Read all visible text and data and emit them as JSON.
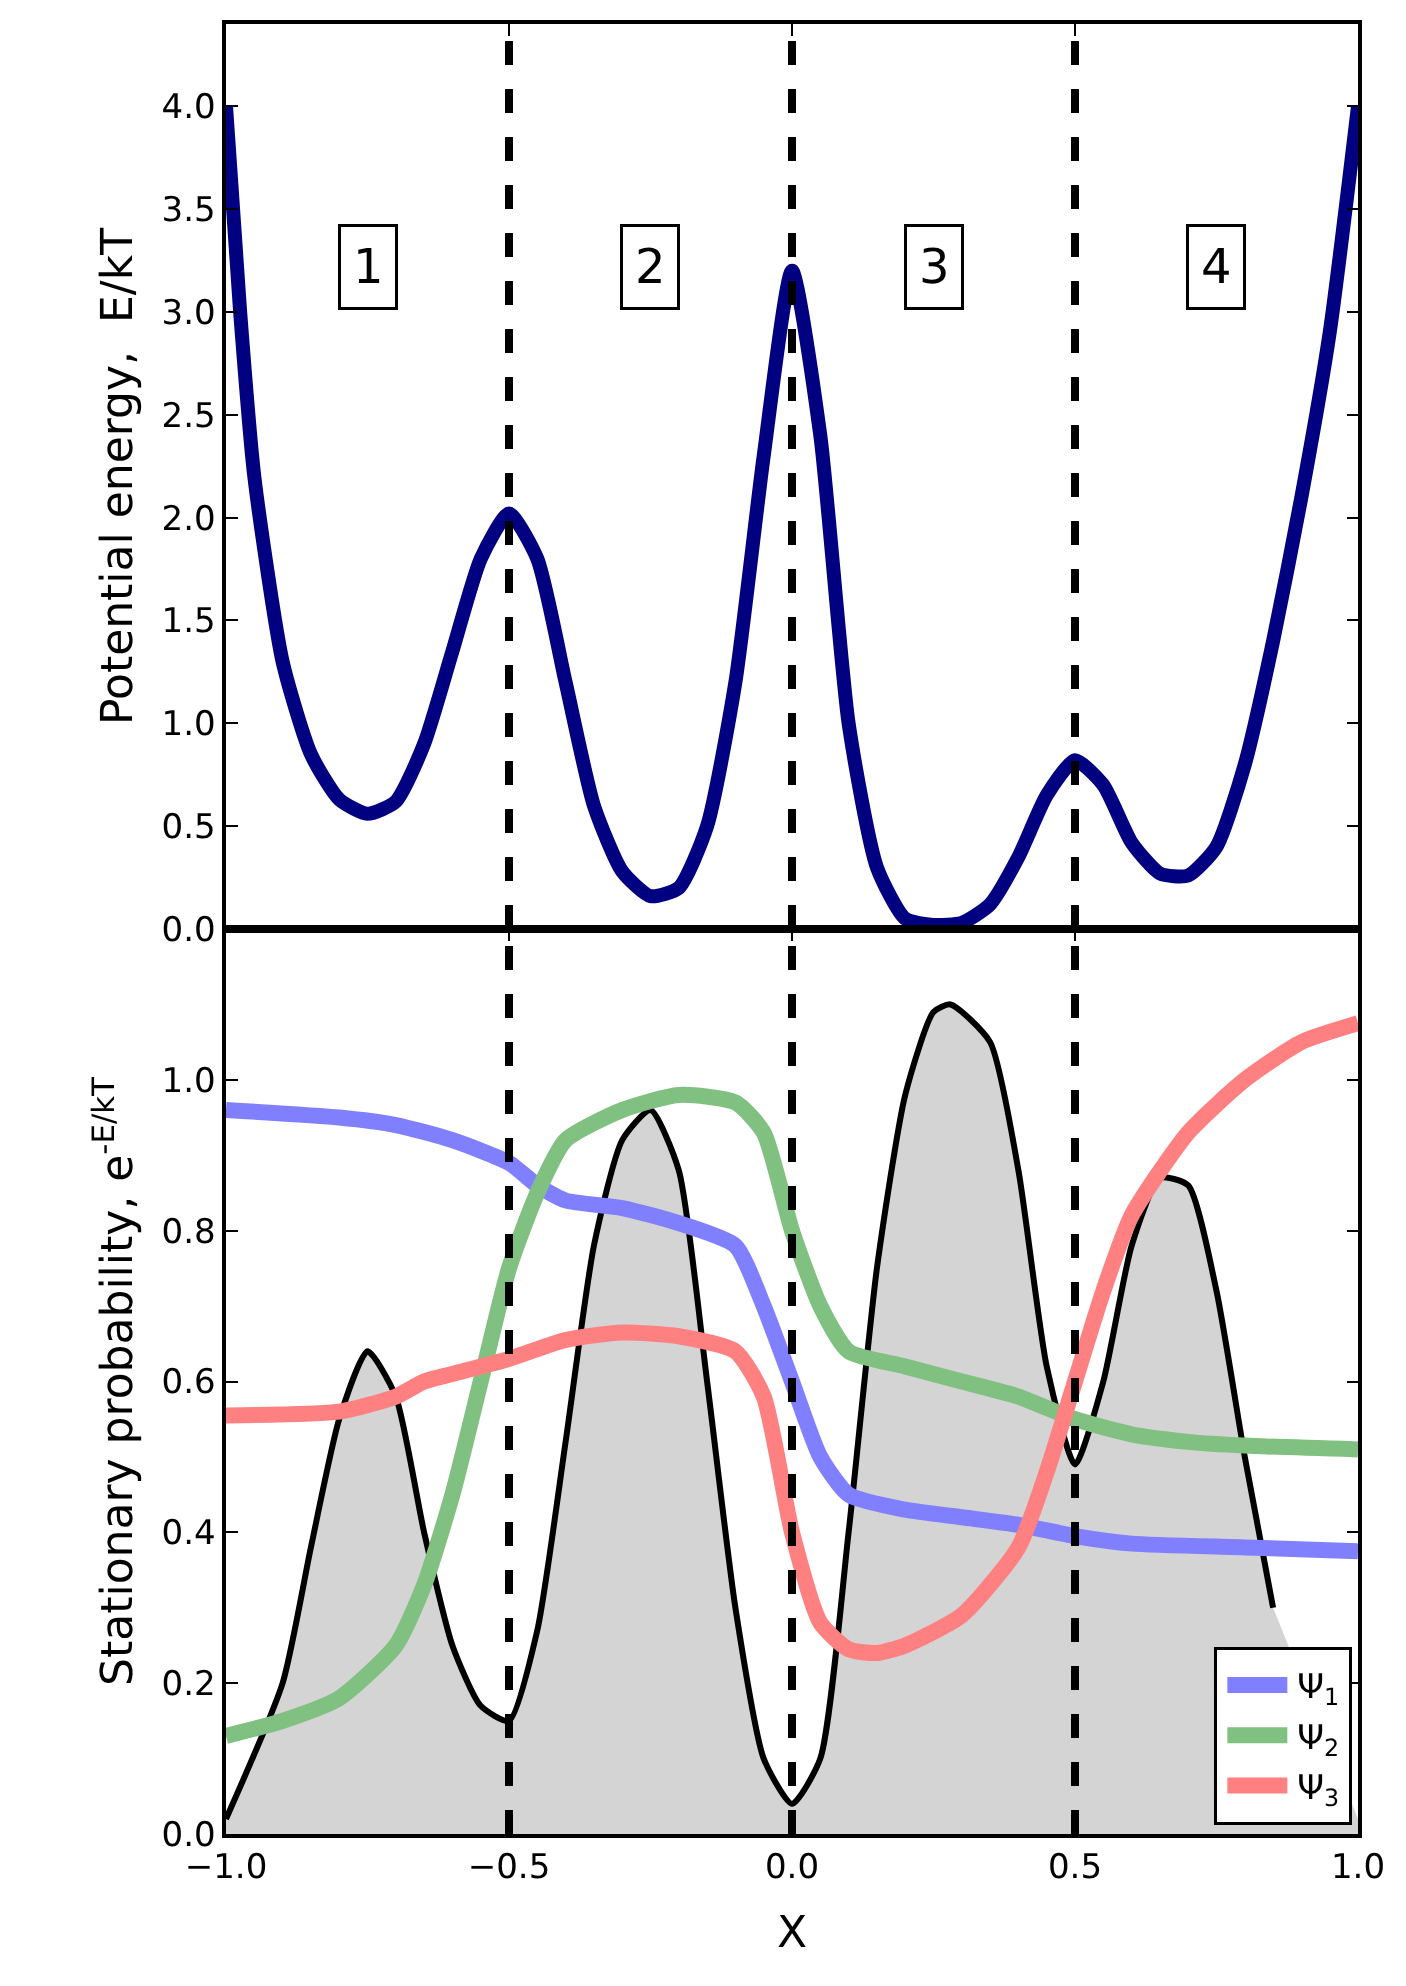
{
  "chart_data": [
    {
      "type": "line",
      "ylabel": "Potential energy,  E/kT",
      "tick_labels": "y",
      "x": [
        -1,
        -0.975,
        -0.95,
        -0.9,
        -0.85,
        -0.8,
        -0.75,
        -0.7,
        -0.65,
        -0.6,
        -0.55,
        -0.5,
        -0.45,
        -0.4,
        -0.35,
        -0.3,
        -0.25,
        -0.2,
        -0.15,
        -0.1,
        -0.05,
        0,
        0.05,
        0.1,
        0.15,
        0.2,
        0.25,
        0.3,
        0.35,
        0.4,
        0.45,
        0.5,
        0.55,
        0.6,
        0.65,
        0.7,
        0.75,
        0.8,
        0.85,
        0.9,
        0.95,
        1
      ],
      "series": [
        {
          "color": "#000080",
          "values": [
            4.0,
            3.0,
            2.2,
            1.3,
            0.85,
            0.63,
            0.56,
            0.62,
            0.9,
            1.35,
            1.8,
            2.02,
            1.8,
            1.2,
            0.6,
            0.28,
            0.16,
            0.2,
            0.5,
            1.2,
            2.3,
            3.2,
            2.4,
            1.0,
            0.3,
            0.05,
            0.02,
            0.03,
            0.12,
            0.35,
            0.65,
            0.82,
            0.7,
            0.42,
            0.27,
            0.26,
            0.4,
            0.8,
            1.4,
            2.1,
            2.9,
            4.0
          ]
        }
      ],
      "xlim": [
        -1,
        1
      ],
      "xticks": [
        -1.0,
        -0.5,
        0.0,
        0.5,
        1.0
      ],
      "ylim": [
        0,
        4.4
      ],
      "yticks": [
        {
          "value": 0,
          "label": "0.0"
        },
        {
          "value": 0.5,
          "label": "0.5"
        },
        {
          "value": 1,
          "label": "1.0"
        },
        {
          "value": 1.5,
          "label": "1.5"
        },
        {
          "value": 2,
          "label": "2.0"
        },
        {
          "value": 2.5,
          "label": "2.5"
        },
        {
          "value": 3,
          "label": "3.0"
        },
        {
          "value": 3.5,
          "label": "3.5"
        },
        {
          "value": 4,
          "label": "4.0"
        }
      ],
      "ref_lines": [
        {
          "axis": "x",
          "value": -0.5,
          "color": "#000000",
          "line_style": "dashed"
        },
        {
          "axis": "x",
          "value": 0,
          "color": "#000000",
          "line_style": "dashed"
        },
        {
          "axis": "x",
          "value": 0.5,
          "color": "#000000",
          "line_style": "dashed"
        }
      ],
      "annotations": [
        {
          "text": "1",
          "x": -0.75,
          "y": 3.22
        },
        {
          "text": "2",
          "x": -0.25,
          "y": 3.22
        },
        {
          "text": "3",
          "x": 0.25,
          "y": 3.22
        },
        {
          "text": "4",
          "x": 0.75,
          "y": 3.22
        }
      ]
    },
    {
      "type": "line",
      "ylabel": "Stationary probability, e$^{-E/kT}$",
      "xlabel": "X",
      "legend": "bottom right",
      "x": [
        -1,
        -0.9,
        -0.85,
        -0.8,
        -0.75,
        -0.7,
        -0.65,
        -0.6,
        -0.55,
        -0.5,
        -0.45,
        -0.4,
        -0.35,
        -0.3,
        -0.25,
        -0.2,
        -0.15,
        -0.1,
        -0.05,
        0,
        0.05,
        0.1,
        0.15,
        0.2,
        0.25,
        0.28,
        0.35,
        0.4,
        0.45,
        0.5,
        0.55,
        0.6,
        0.65,
        0.7,
        0.75,
        0.8,
        0.85,
        0.9,
        0.95,
        1
      ],
      "series": [
        {
          "type": "area",
          "color": "#000000",
          "values": [
            0.02,
            0.2,
            0.38,
            0.55,
            0.64,
            0.58,
            0.4,
            0.25,
            0.17,
            0.15,
            0.27,
            0.52,
            0.78,
            0.92,
            0.96,
            0.88,
            0.6,
            0.3,
            0.1,
            0.04,
            0.1,
            0.4,
            0.75,
            0.98,
            1.09,
            1.1,
            1.05,
            0.88,
            0.62,
            0.49,
            0.6,
            0.78,
            0.87,
            0.86,
            0.72,
            0.5,
            0.3,
            null,
            null,
            0.02
          ]
        },
        {
          "name": "Ψ$_{1}$",
          "color": "#8080ff",
          "x": [
            -1,
            -0.8,
            -0.7,
            -0.6,
            -0.5,
            -0.45,
            -0.4,
            -0.3,
            -0.2,
            -0.1,
            -0.05,
            0,
            0.05,
            0.1,
            0.2,
            0.3,
            0.4,
            0.5,
            0.6,
            0.8,
            1
          ],
          "values": [
            0.96,
            0.95,
            0.94,
            0.92,
            0.89,
            0.86,
            0.84,
            0.83,
            0.81,
            0.78,
            0.7,
            0.6,
            0.5,
            0.45,
            0.43,
            0.42,
            0.41,
            0.395,
            0.385,
            0.38,
            0.375
          ]
        },
        {
          "name": "Ψ$_{2}$",
          "color": "#80c080",
          "x": [
            -1,
            -0.9,
            -0.8,
            -0.7,
            -0.65,
            -0.6,
            -0.55,
            -0.5,
            -0.45,
            -0.4,
            -0.3,
            -0.2,
            -0.1,
            -0.05,
            0,
            0.05,
            0.1,
            0.2,
            0.3,
            0.4,
            0.5,
            0.6,
            0.7,
            0.8,
            1
          ],
          "values": [
            0.13,
            0.15,
            0.18,
            0.25,
            0.33,
            0.45,
            0.6,
            0.75,
            0.85,
            0.92,
            0.96,
            0.98,
            0.97,
            0.93,
            0.8,
            0.7,
            0.64,
            0.62,
            0.6,
            0.58,
            0.55,
            0.53,
            0.52,
            0.515,
            0.51
          ]
        },
        {
          "name": "Ψ$_{3}$",
          "color": "#ff8080",
          "x": [
            -1,
            -0.8,
            -0.7,
            -0.65,
            -0.6,
            -0.5,
            -0.4,
            -0.3,
            -0.2,
            -0.1,
            -0.05,
            0,
            0.05,
            0.1,
            0.15,
            0.2,
            0.3,
            0.4,
            0.45,
            0.5,
            0.55,
            0.6,
            0.7,
            0.8,
            0.9,
            1
          ],
          "values": [
            0.555,
            0.56,
            0.58,
            0.6,
            0.61,
            0.63,
            0.655,
            0.665,
            0.66,
            0.64,
            0.58,
            0.4,
            0.28,
            0.245,
            0.24,
            0.25,
            0.29,
            0.38,
            0.48,
            0.6,
            0.72,
            0.82,
            0.93,
            1.0,
            1.05,
            1.075
          ]
        }
      ],
      "xlim": [
        -1,
        1
      ],
      "xticks": [
        {
          "value": -1,
          "label": "−1.0"
        },
        {
          "value": -0.5,
          "label": "−0.5"
        },
        {
          "value": 0,
          "label": "0.0"
        },
        {
          "value": 0.5,
          "label": "0.5"
        },
        {
          "value": 1,
          "label": "1.0"
        }
      ],
      "ylim": [
        0,
        1.2
      ],
      "yticks": [
        {
          "value": 0,
          "label": "0.0"
        },
        {
          "value": 0.2,
          "label": "0.2"
        },
        {
          "value": 0.4,
          "label": "0.4"
        },
        {
          "value": 0.6,
          "label": "0.6"
        },
        {
          "value": 0.8,
          "label": "0.8"
        },
        {
          "value": 1,
          "label": "1.0"
        }
      ],
      "ref_lines": [
        {
          "axis": "x",
          "value": -0.5,
          "color": "#000000",
          "line_style": "dashed"
        },
        {
          "axis": "x",
          "value": 0,
          "color": "#000000",
          "line_style": "dashed"
        },
        {
          "axis": "x",
          "value": 0.5,
          "color": "#000000",
          "line_style": "dashed"
        }
      ]
    }
  ]
}
